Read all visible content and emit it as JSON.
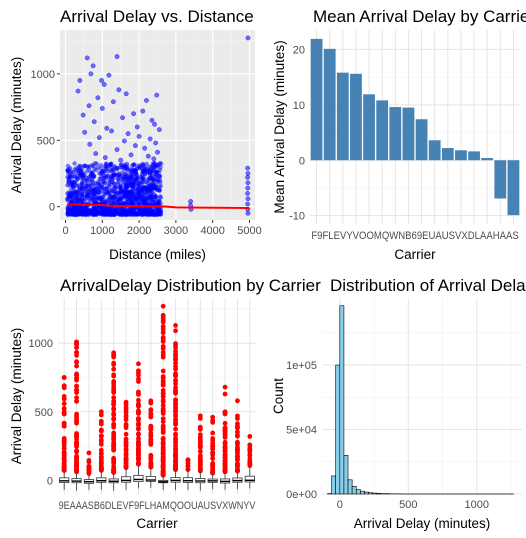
{
  "chart_data": [
    {
      "type": "scatter",
      "title": "Arrival Delay vs. Distance",
      "xlabel": "Distance (miles)",
      "ylabel": "Arrival Delay (minutes)",
      "xlim": [
        -150,
        5150
      ],
      "ylim": [
        -100,
        1330
      ],
      "x_ticks": [
        0,
        1000,
        2000,
        3000,
        4000,
        5000
      ],
      "y_ticks": [
        0,
        500,
        1000
      ],
      "grid": true,
      "background": "#ebebeb",
      "point_color": "#0000ff",
      "trend_color": "#ff0000",
      "points": [
        {
          "x": 1400,
          "y": 1130
        },
        {
          "x": 590,
          "y": 1120
        },
        {
          "x": 750,
          "y": 1060
        },
        {
          "x": 690,
          "y": 1000
        },
        {
          "x": 1180,
          "y": 990
        },
        {
          "x": 390,
          "y": 950
        },
        {
          "x": 980,
          "y": 950
        },
        {
          "x": 1050,
          "y": 920
        },
        {
          "x": 1450,
          "y": 880
        },
        {
          "x": 340,
          "y": 870
        },
        {
          "x": 1650,
          "y": 850
        },
        {
          "x": 2480,
          "y": 840
        },
        {
          "x": 880,
          "y": 820
        },
        {
          "x": 2200,
          "y": 800
        },
        {
          "x": 1300,
          "y": 790
        },
        {
          "x": 640,
          "y": 760
        },
        {
          "x": 1000,
          "y": 740
        },
        {
          "x": 2100,
          "y": 720
        },
        {
          "x": 1850,
          "y": 700
        },
        {
          "x": 480,
          "y": 690
        },
        {
          "x": 1550,
          "y": 670
        },
        {
          "x": 2350,
          "y": 650
        },
        {
          "x": 780,
          "y": 640
        },
        {
          "x": 2420,
          "y": 620
        },
        {
          "x": 1950,
          "y": 600
        },
        {
          "x": 1120,
          "y": 590
        },
        {
          "x": 2550,
          "y": 580
        },
        {
          "x": 1250,
          "y": 570
        },
        {
          "x": 520,
          "y": 560
        },
        {
          "x": 1700,
          "y": 550
        },
        {
          "x": 2000,
          "y": 530
        },
        {
          "x": 920,
          "y": 520
        },
        {
          "x": 2300,
          "y": 510
        },
        {
          "x": 1600,
          "y": 495
        },
        {
          "x": 2450,
          "y": 480
        },
        {
          "x": 660,
          "y": 470
        },
        {
          "x": 1900,
          "y": 460
        },
        {
          "x": 2150,
          "y": 440
        },
        {
          "x": 1400,
          "y": 430
        },
        {
          "x": 2500,
          "y": 410
        },
        {
          "x": 820,
          "y": 400
        },
        {
          "x": 1780,
          "y": 390
        },
        {
          "x": 2250,
          "y": 380
        },
        {
          "x": 1080,
          "y": 370
        },
        {
          "x": 2400,
          "y": 360
        },
        {
          "x": 1500,
          "y": 350
        },
        {
          "x": 3400,
          "y": 40
        },
        {
          "x": 3400,
          "y": 10
        },
        {
          "x": 3410,
          "y": -20
        },
        {
          "x": 4960,
          "y": 1270
        },
        {
          "x": 4950,
          "y": 290
        },
        {
          "x": 4960,
          "y": 250
        },
        {
          "x": 4950,
          "y": 220
        },
        {
          "x": 4960,
          "y": 180
        },
        {
          "x": 4955,
          "y": 140
        },
        {
          "x": 4950,
          "y": 100
        },
        {
          "x": 4960,
          "y": 60
        },
        {
          "x": 4950,
          "y": 20
        },
        {
          "x": 4955,
          "y": -20
        },
        {
          "x": 4960,
          "y": -50
        }
      ],
      "dense_band": {
        "x_range": [
          50,
          2600
        ],
        "y_range": [
          -60,
          330
        ]
      },
      "trend": [
        {
          "x": 50,
          "y": 18
        },
        {
          "x": 1000,
          "y": 12
        },
        {
          "x": 1400,
          "y": 5
        },
        {
          "x": 2700,
          "y": 2
        },
        {
          "x": 3000,
          "y": -5
        },
        {
          "x": 5000,
          "y": -10
        }
      ]
    },
    {
      "type": "bar",
      "title": "Mean Arrival Delay by Carrier",
      "xlabel": "Carrier",
      "ylabel": "Mean Arrival Delay (minutes)",
      "ylim": [
        -11.5,
        23.5
      ],
      "y_ticks": [
        -10,
        0,
        10,
        20
      ],
      "grid": true,
      "bar_color": "#4682b4",
      "categories": [
        "F9",
        "FL",
        "EV",
        "YV",
        "OO",
        "MQ",
        "WN",
        "B6",
        "9E",
        "UA",
        "US",
        "VX",
        "DL",
        "AA",
        "HA",
        "AS"
      ],
      "tick_label_text": "F9FLEVYVOOMQWNB69EUAUSVXDLAAHAAS",
      "values": [
        21.9,
        20.1,
        15.8,
        15.6,
        11.9,
        10.8,
        9.6,
        9.5,
        7.4,
        3.6,
        2.2,
        1.8,
        1.6,
        0.4,
        -6.9,
        -9.9
      ]
    },
    {
      "type": "box",
      "title": "ArrivalDelay Distribution by Carrier",
      "xlabel": "Carrier",
      "ylabel": "Arrival Delay (minutes)",
      "ylim": [
        -100,
        1330
      ],
      "y_ticks": [
        0,
        500,
        1000
      ],
      "grid": true,
      "outlier_color": "#ff0000",
      "categories": [
        "9E",
        "AA",
        "AS",
        "B6",
        "DL",
        "EV",
        "F9",
        "FL",
        "HA",
        "MQ",
        "OO",
        "UA",
        "US",
        "VX",
        "WN",
        "YV"
      ],
      "tick_label_text": "9EAAASB6DLEVF9FLHAMQOOUAUSVXWNYV",
      "boxes": [
        {
          "q1": -17,
          "median": -4,
          "q3": 18,
          "whisker_low": -70,
          "whisker_high": 65,
          "outlier_max": 750
        },
        {
          "q1": -18,
          "median": -6,
          "q3": 12,
          "whisker_low": -75,
          "whisker_high": 55,
          "outlier_max": 1010
        },
        {
          "q1": -22,
          "median": -10,
          "q3": 5,
          "whisker_low": -70,
          "whisker_high": 40,
          "outlier_max": 200
        },
        {
          "q1": -15,
          "median": -3,
          "q3": 18,
          "whisker_low": -70,
          "whisker_high": 65,
          "outlier_max": 500
        },
        {
          "q1": -18,
          "median": -7,
          "q3": 10,
          "whisker_low": -75,
          "whisker_high": 50,
          "outlier_max": 930
        },
        {
          "q1": -14,
          "median": -1,
          "q3": 26,
          "whisker_low": -70,
          "whisker_high": 85,
          "outlier_max": 570
        },
        {
          "q1": -10,
          "median": 6,
          "q3": 36,
          "whisker_low": -60,
          "whisker_high": 110,
          "outlier_max": 850
        },
        {
          "q1": -8,
          "median": 2,
          "q3": 28,
          "whisker_low": -55,
          "whisker_high": 90,
          "outlier_max": 580
        },
        {
          "q1": -18,
          "median": -11,
          "q3": -1,
          "whisker_low": -70,
          "whisker_high": 30,
          "outlier_max": 1270
        },
        {
          "q1": -14,
          "median": -1,
          "q3": 20,
          "whisker_low": -70,
          "whisker_high": 70,
          "outlier_max": 1130
        },
        {
          "q1": -16,
          "median": -3,
          "q3": 19,
          "whisker_low": -70,
          "whisker_high": 70,
          "outlier_max": 150
        },
        {
          "q1": -18,
          "median": -5,
          "q3": 13,
          "whisker_low": -75,
          "whisker_high": 60,
          "outlier_max": 470
        },
        {
          "q1": -15,
          "median": -4,
          "q3": 9,
          "whisker_low": -65,
          "whisker_high": 45,
          "outlier_max": 460
        },
        {
          "q1": -20,
          "median": -8,
          "q3": 10,
          "whisker_low": -70,
          "whisker_high": 55,
          "outlier_max": 680
        },
        {
          "q1": -14,
          "median": -2,
          "q3": 17,
          "whisker_low": -65,
          "whisker_high": 60,
          "outlier_max": 580
        },
        {
          "q1": -12,
          "median": 0,
          "q3": 30,
          "whisker_low": -60,
          "whisker_high": 100,
          "outlier_max": 320
        }
      ]
    },
    {
      "type": "histogram",
      "title": "Distribution of Arrival Delay",
      "xlabel": "Arrival Delay (minutes)",
      "ylabel": "Count",
      "xlim": [
        -130,
        1330
      ],
      "ylim": [
        0,
        152000
      ],
      "x_ticks": [
        0,
        500,
        1000
      ],
      "y_ticks": [
        0,
        50000,
        100000
      ],
      "y_tick_labels": [
        "0e+00",
        "5e+04",
        "1e+05"
      ],
      "grid": true,
      "bar_color": "#87ceeb",
      "bar_edge": "#000000",
      "bins": [
        {
          "x0": -90,
          "x1": -60,
          "count": 300
        },
        {
          "x0": -60,
          "x1": -30,
          "count": 14000
        },
        {
          "x0": -30,
          "x1": 0,
          "count": 100000
        },
        {
          "x0": 0,
          "x1": 30,
          "count": 146000
        },
        {
          "x0": 30,
          "x1": 60,
          "count": 30000
        },
        {
          "x0": 60,
          "x1": 90,
          "count": 11000
        },
        {
          "x0": 90,
          "x1": 120,
          "count": 6000
        },
        {
          "x0": 120,
          "x1": 150,
          "count": 3500
        },
        {
          "x0": 150,
          "x1": 180,
          "count": 2200
        },
        {
          "x0": 180,
          "x1": 210,
          "count": 1500
        },
        {
          "x0": 210,
          "x1": 240,
          "count": 1000
        },
        {
          "x0": 240,
          "x1": 270,
          "count": 700
        },
        {
          "x0": 270,
          "x1": 300,
          "count": 500
        },
        {
          "x0": 300,
          "x1": 360,
          "count": 300
        },
        {
          "x0": 360,
          "x1": 450,
          "count": 150
        },
        {
          "x0": 450,
          "x1": 1270,
          "count": 30
        }
      ]
    }
  ]
}
